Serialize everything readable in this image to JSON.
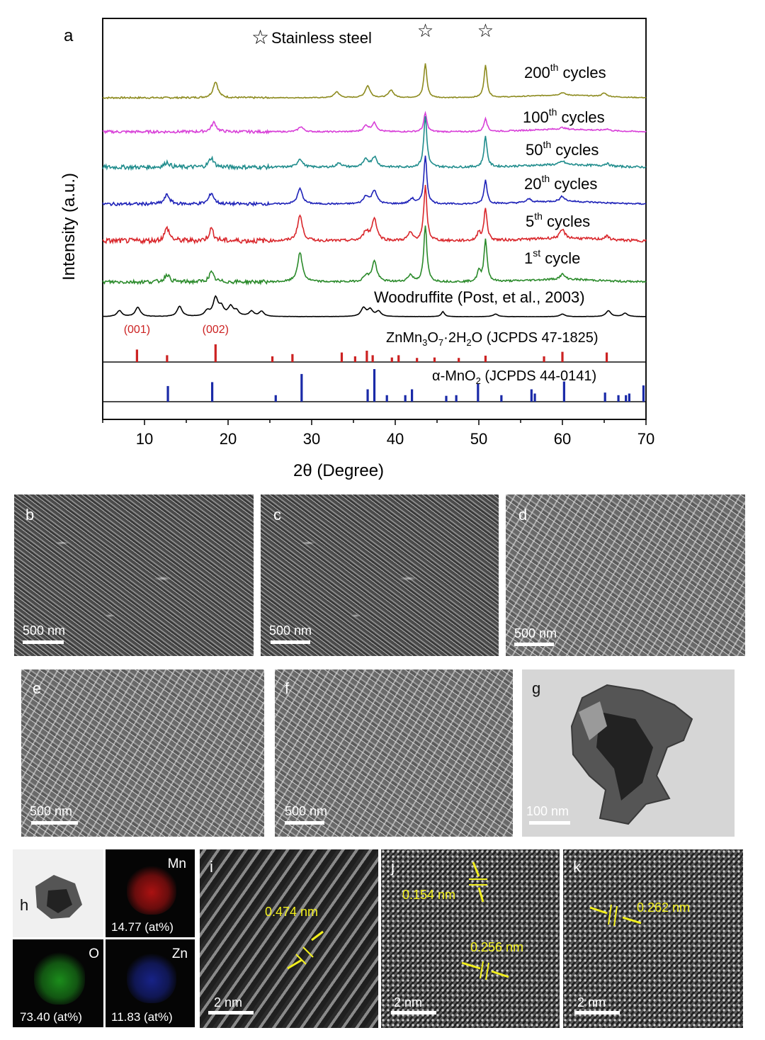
{
  "chart_data": {
    "type": "line",
    "panel_label": "a",
    "xlabel": "2θ (Degree)",
    "ylabel": "Intensity (a.u.)",
    "xlim": [
      5,
      70
    ],
    "xticks": [
      "10",
      "20",
      "30",
      "40",
      "50",
      "60",
      "70"
    ],
    "legend_marker": "☆",
    "legend_text": "Stainless steel",
    "peak_markers": [
      43.6,
      50.8
    ],
    "series": [
      {
        "name": "200th cycles",
        "label_main": "200",
        "label_sup": "th",
        "label_rest": " cycles",
        "color": "#8d8b1f",
        "peaks": [
          [
            18.5,
            0.95
          ],
          [
            33.0,
            0.35
          ],
          [
            36.7,
            0.7
          ],
          [
            39.5,
            0.45
          ],
          [
            43.6,
            2.0
          ],
          [
            50.8,
            1.9
          ],
          [
            60.0,
            0.15
          ],
          [
            65.0,
            0.2
          ]
        ],
        "noise": 0.05
      },
      {
        "name": "100th cycles",
        "label_main": "100",
        "label_sup": "th",
        "label_rest": " cycles",
        "color": "#d83fd8",
        "peaks": [
          [
            18.3,
            0.55
          ],
          [
            28.7,
            0.3
          ],
          [
            36.5,
            0.35
          ],
          [
            37.5,
            0.5
          ],
          [
            43.6,
            1.1
          ],
          [
            50.8,
            0.8
          ],
          [
            60.0,
            0.1
          ],
          [
            65.3,
            0.1
          ]
        ],
        "noise": 0.08
      },
      {
        "name": "50th cycles",
        "label_main": "50",
        "label_sup": "th",
        "label_rest": " cycles",
        "color": "#1f8c8c",
        "peaks": [
          [
            12.7,
            0.3
          ],
          [
            18.0,
            0.55
          ],
          [
            28.6,
            0.5
          ],
          [
            33.3,
            0.25
          ],
          [
            36.5,
            0.45
          ],
          [
            37.5,
            0.6
          ],
          [
            43.6,
            3.0
          ],
          [
            50.8,
            1.8
          ],
          [
            60.0,
            0.2
          ],
          [
            65.3,
            0.15
          ]
        ],
        "noise": 0.12
      },
      {
        "name": "20th cycles",
        "label_main": "20",
        "label_sup": "th",
        "label_rest": " cycles",
        "color": "#1e22b8",
        "peaks": [
          [
            12.7,
            0.55
          ],
          [
            18.0,
            0.65
          ],
          [
            28.6,
            0.9
          ],
          [
            36.5,
            0.45
          ],
          [
            37.5,
            0.8
          ],
          [
            42.0,
            0.3
          ],
          [
            43.6,
            2.8
          ],
          [
            50.8,
            1.4
          ],
          [
            56.0,
            0.2
          ],
          [
            60.0,
            0.3
          ]
        ],
        "noise": 0.09
      },
      {
        "name": "5th cycles",
        "label_main": "5",
        "label_sup": "th",
        "label_rest": " cycles",
        "color": "#d9262b",
        "peaks": [
          [
            12.7,
            0.75
          ],
          [
            18.0,
            0.7
          ],
          [
            28.6,
            1.5
          ],
          [
            36.5,
            0.55
          ],
          [
            37.5,
            1.3
          ],
          [
            41.8,
            0.45
          ],
          [
            43.6,
            3.2
          ],
          [
            50.0,
            0.5
          ],
          [
            50.8,
            1.9
          ],
          [
            60.0,
            0.5
          ],
          [
            65.3,
            0.2
          ]
        ],
        "noise": 0.15
      },
      {
        "name": "1st cycle",
        "label_main": "1",
        "label_sup": "st",
        "label_rest": " cycle",
        "color": "#2a8a2a",
        "peaks": [
          [
            12.7,
            0.45
          ],
          [
            18.0,
            0.55
          ],
          [
            28.6,
            1.7
          ],
          [
            36.5,
            0.35
          ],
          [
            37.5,
            1.2
          ],
          [
            41.8,
            0.4
          ],
          [
            43.6,
            3.3
          ],
          [
            50.0,
            0.6
          ],
          [
            50.8,
            2.5
          ],
          [
            60.0,
            0.3
          ]
        ],
        "noise": 0.11
      },
      {
        "name": "Woodruffite (Post, et al., 2003)",
        "label_main": "Woodruffite (Post, et al., 2003)",
        "label_sup": "",
        "label_rest": "",
        "color": "#000000",
        "peaks": [
          [
            7.0,
            0.35
          ],
          [
            9.2,
            0.55
          ],
          [
            14.2,
            0.6
          ],
          [
            17.5,
            0.3
          ],
          [
            18.5,
            1.05
          ],
          [
            19.2,
            0.5
          ],
          [
            20.3,
            0.55
          ],
          [
            21.0,
            0.3
          ],
          [
            22.8,
            0.3
          ],
          [
            24.0,
            0.3
          ],
          [
            36.2,
            0.5
          ],
          [
            37.0,
            0.4
          ],
          [
            38.0,
            0.3
          ],
          [
            45.7,
            0.3
          ],
          [
            52.0,
            0.15
          ],
          [
            60.0,
            0.15
          ],
          [
            65.5,
            0.35
          ],
          [
            67.5,
            0.2
          ]
        ],
        "noise": 0.01
      }
    ],
    "reference_patterns": [
      {
        "name": "ZnMn3O7·2H2O (JCPDS 47-1825)",
        "color": "#cc2222",
        "lines": [
          [
            9.1,
            0.55
          ],
          [
            12.7,
            0.3
          ],
          [
            18.5,
            0.78
          ],
          [
            25.3,
            0.25
          ],
          [
            27.7,
            0.35
          ],
          [
            33.6,
            0.42
          ],
          [
            35.2,
            0.25
          ],
          [
            36.6,
            0.5
          ],
          [
            37.3,
            0.3
          ],
          [
            39.6,
            0.2
          ],
          [
            40.4,
            0.3
          ],
          [
            42.6,
            0.18
          ],
          [
            44.7,
            0.2
          ],
          [
            47.6,
            0.18
          ],
          [
            50.8,
            0.28
          ],
          [
            57.8,
            0.25
          ],
          [
            60.0,
            0.45
          ],
          [
            65.3,
            0.42
          ]
        ],
        "miller_labels": [
          {
            "x": 9.1,
            "text": "(001)"
          },
          {
            "x": 18.5,
            "text": "(002)"
          }
        ]
      },
      {
        "name": "α-MnO2 (JCPDS 44-0141)",
        "color": "#1a2aa8",
        "lines": [
          [
            12.8,
            0.48
          ],
          [
            18.1,
            0.6
          ],
          [
            25.7,
            0.2
          ],
          [
            28.8,
            0.85
          ],
          [
            36.7,
            0.38
          ],
          [
            37.5,
            1.0
          ],
          [
            39.0,
            0.2
          ],
          [
            41.2,
            0.2
          ],
          [
            42.0,
            0.38
          ],
          [
            46.1,
            0.18
          ],
          [
            47.3,
            0.2
          ],
          [
            49.9,
            0.55
          ],
          [
            52.7,
            0.2
          ],
          [
            56.3,
            0.38
          ],
          [
            56.7,
            0.25
          ],
          [
            60.2,
            0.62
          ],
          [
            65.1,
            0.28
          ],
          [
            66.7,
            0.2
          ],
          [
            67.6,
            0.2
          ],
          [
            68.0,
            0.25
          ],
          [
            69.7,
            0.5
          ]
        ]
      }
    ]
  },
  "reference_label": {
    "zn_formula": {
      "a": "ZnMn",
      "s1": "3",
      "b": "O",
      "s2": "7",
      "c": "·2H",
      "s3": "2",
      "d": "O (JCPDS 47-1825)"
    },
    "mno2_formula": {
      "a": "α-MnO",
      "s1": "2",
      "b": " (JCPDS 44-0141)"
    }
  },
  "images": {
    "b": {
      "label": "b",
      "scale": "500 nm"
    },
    "c": {
      "label": "c",
      "scale": "500 nm"
    },
    "d": {
      "label": "d",
      "scale": "500 nm"
    },
    "e": {
      "label": "e",
      "scale": "500 nm"
    },
    "f": {
      "label": "f",
      "scale": "500 nm"
    },
    "g": {
      "label": "g",
      "scale": "100 nm"
    },
    "h": {
      "label": "h",
      "maps": [
        {
          "element": "Mn",
          "value": "14.77 (at%)",
          "color": "#c81414"
        },
        {
          "element": "O",
          "value": "73.40 (at%)",
          "color": "#1fa41f"
        },
        {
          "element": "Zn",
          "value": "11.83 (at%)",
          "color": "#1c2aa8"
        }
      ]
    },
    "i": {
      "label": "i",
      "scale": "2 nm",
      "spacing": "0.474 nm"
    },
    "j": {
      "label": "j",
      "scale": "2 nm",
      "spacing_1": "0.154 nm",
      "spacing_2": "0.256 nm"
    },
    "k": {
      "label": "k",
      "scale": "2 nm",
      "spacing": "0.262 nm"
    }
  },
  "colors": {
    "measure": "#f2ef1c",
    "scale": "#ffffff"
  }
}
